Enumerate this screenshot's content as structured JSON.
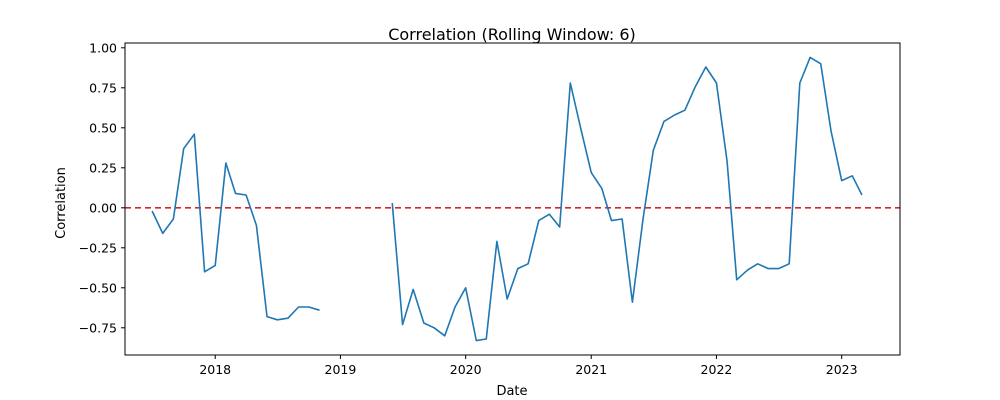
{
  "chart_data": {
    "type": "line",
    "title": "Correlation (Rolling Window: 6)",
    "xlabel": "Date",
    "ylabel": "Correlation",
    "xlim": [
      "2017-04-13",
      "2023-06-20"
    ],
    "ylim": [
      -0.92,
      1.03
    ],
    "x_ticks": [
      "2018-01-01",
      "2019-01-01",
      "2020-01-01",
      "2021-01-01",
      "2022-01-01",
      "2023-01-01"
    ],
    "x_tick_labels": [
      "2018",
      "2019",
      "2020",
      "2021",
      "2022",
      "2023"
    ],
    "y_ticks": [
      -0.75,
      -0.5,
      -0.25,
      0.0,
      0.25,
      0.5,
      0.75,
      1.0
    ],
    "y_tick_labels": [
      "−0.75",
      "−0.50",
      "−0.25",
      "0.00",
      "0.25",
      "0.50",
      "0.75",
      "1.00"
    ],
    "grid": false,
    "series": [
      {
        "color": "#1f77b4",
        "x": [
          "2017-07-01",
          "2017-08-01",
          "2017-09-01",
          "2017-10-01",
          "2017-11-01",
          "2017-12-01",
          "2018-01-01",
          "2018-02-01",
          "2018-03-01",
          "2018-04-01",
          "2018-05-01",
          "2018-06-01",
          "2018-07-01",
          "2018-08-01",
          "2018-09-01",
          "2018-10-01",
          "2018-11-01",
          "2018-12-01",
          "2019-01-01",
          "2019-02-01",
          "2019-03-01",
          "2019-04-01",
          "2019-05-01",
          "2019-06-01",
          "2019-07-01",
          "2019-08-01",
          "2019-09-01",
          "2019-10-01",
          "2019-11-01",
          "2019-12-01",
          "2020-01-01",
          "2020-02-01",
          "2020-03-01",
          "2020-04-01",
          "2020-05-01",
          "2020-06-01",
          "2020-07-01",
          "2020-08-01",
          "2020-09-01",
          "2020-10-01",
          "2020-11-01",
          "2020-12-01",
          "2021-01-01",
          "2021-02-01",
          "2021-03-01",
          "2021-04-01",
          "2021-05-01",
          "2021-06-01",
          "2021-07-01",
          "2021-08-01",
          "2021-09-01",
          "2021-10-01",
          "2021-11-01",
          "2021-12-01",
          "2022-01-01",
          "2022-02-01",
          "2022-03-01",
          "2022-04-01",
          "2022-05-01",
          "2022-06-01",
          "2022-07-01",
          "2022-08-01",
          "2022-09-01",
          "2022-10-01",
          "2022-11-01",
          "2022-12-01",
          "2023-01-01",
          "2023-02-01",
          "2023-03-01"
        ],
        "values": [
          -0.02,
          -0.16,
          -0.07,
          0.37,
          0.46,
          -0.4,
          -0.36,
          0.28,
          0.09,
          0.08,
          -0.11,
          -0.68,
          -0.7,
          -0.69,
          -0.62,
          -0.62,
          -0.64,
          null,
          null,
          null,
          null,
          null,
          null,
          0.03,
          -0.73,
          -0.51,
          -0.72,
          -0.75,
          -0.8,
          -0.62,
          -0.5,
          -0.83,
          -0.82,
          -0.21,
          -0.57,
          -0.38,
          -0.35,
          -0.08,
          -0.04,
          -0.12,
          0.78,
          0.5,
          0.22,
          0.12,
          -0.08,
          -0.07,
          -0.59,
          -0.07,
          0.36,
          0.54,
          0.58,
          0.61,
          0.76,
          0.88,
          0.78,
          0.29,
          -0.45,
          -0.39,
          -0.35,
          -0.38,
          -0.38,
          -0.35,
          0.78,
          0.94,
          0.9,
          0.48,
          0.17,
          0.2,
          0.08
        ]
      }
    ],
    "reference_lines": [
      {
        "orientation": "horizontal",
        "y": 0.0,
        "color": "#d62728",
        "style": "dashed"
      }
    ]
  }
}
